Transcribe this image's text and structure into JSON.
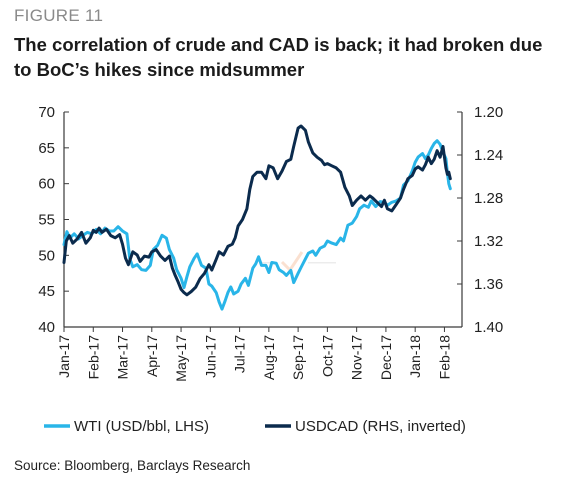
{
  "figure": {
    "label": "FIGURE 11",
    "title": "The correlation of crude and CAD is back; it had broken due to BoC’s hikes since midsummer",
    "source": "Source: Bloomberg, Barclays Research"
  },
  "chart_data": {
    "type": "line",
    "x_tick_labels": [
      "Jan-17",
      "Feb-17",
      "Mar-17",
      "Apr-17",
      "May-17",
      "Jun-17",
      "Jul-17",
      "Aug-17",
      "Sep-17",
      "Oct-17",
      "Nov-17",
      "Dec-17",
      "Jan-18",
      "Feb-18"
    ],
    "x_range": [
      0,
      13.6
    ],
    "y_left": {
      "range": [
        40,
        70
      ],
      "ticks": [
        40,
        45,
        50,
        55,
        60,
        65,
        70
      ],
      "label": ""
    },
    "y_right": {
      "range": [
        1.2,
        1.4
      ],
      "inverted": true,
      "ticks": [
        "1.20",
        "1.24",
        "1.28",
        "1.32",
        "1.36",
        "1.40"
      ],
      "label": ""
    },
    "legend_position": "bottom",
    "grid": false,
    "series": [
      {
        "name": "WTI (USD/bbl, LHS)",
        "axis": "left",
        "color": "#29b5e8",
        "points": [
          [
            0.0,
            51.5
          ],
          [
            0.1,
            53.3
          ],
          [
            0.2,
            52.4
          ],
          [
            0.35,
            53.0
          ],
          [
            0.5,
            52.3
          ],
          [
            0.65,
            52.8
          ],
          [
            0.8,
            53.2
          ],
          [
            0.95,
            53.0
          ],
          [
            1.1,
            53.6
          ],
          [
            1.25,
            53.0
          ],
          [
            1.4,
            53.8
          ],
          [
            1.55,
            53.4
          ],
          [
            1.7,
            53.4
          ],
          [
            1.85,
            54.0
          ],
          [
            2.0,
            53.4
          ],
          [
            2.15,
            53.0
          ],
          [
            2.25,
            49.5
          ],
          [
            2.35,
            48.4
          ],
          [
            2.5,
            48.7
          ],
          [
            2.65,
            48.0
          ],
          [
            2.8,
            47.9
          ],
          [
            2.95,
            48.6
          ],
          [
            3.05,
            50.8
          ],
          [
            3.2,
            51.4
          ],
          [
            3.35,
            52.8
          ],
          [
            3.5,
            52.4
          ],
          [
            3.6,
            50.8
          ],
          [
            3.75,
            49.6
          ],
          [
            3.85,
            48.0
          ],
          [
            4.0,
            46.8
          ],
          [
            4.1,
            45.5
          ],
          [
            4.2,
            47.0
          ],
          [
            4.3,
            48.4
          ],
          [
            4.45,
            49.6
          ],
          [
            4.55,
            50.2
          ],
          [
            4.7,
            48.6
          ],
          [
            4.85,
            48.2
          ],
          [
            4.95,
            46.0
          ],
          [
            5.05,
            45.7
          ],
          [
            5.2,
            44.8
          ],
          [
            5.3,
            43.5
          ],
          [
            5.4,
            42.5
          ],
          [
            5.5,
            43.6
          ],
          [
            5.6,
            44.8
          ],
          [
            5.7,
            45.6
          ],
          [
            5.8,
            44.6
          ],
          [
            5.95,
            45.0
          ],
          [
            6.05,
            46.0
          ],
          [
            6.2,
            46.8
          ],
          [
            6.3,
            45.8
          ],
          [
            6.45,
            48.2
          ],
          [
            6.55,
            48.8
          ],
          [
            6.65,
            49.8
          ],
          [
            6.75,
            48.6
          ],
          [
            6.9,
            48.6
          ],
          [
            7.0,
            47.6
          ],
          [
            7.1,
            49.0
          ],
          [
            7.25,
            48.9
          ],
          [
            7.35,
            48.0
          ],
          [
            7.5,
            47.6
          ],
          [
            7.6,
            47.2
          ],
          [
            7.75,
            47.9
          ],
          [
            7.85,
            46.2
          ],
          [
            8.0,
            47.5
          ],
          [
            8.1,
            48.3
          ],
          [
            8.25,
            49.5
          ],
          [
            8.35,
            50.3
          ],
          [
            8.5,
            50.6
          ],
          [
            8.6,
            50.0
          ],
          [
            8.75,
            51.0
          ],
          [
            8.9,
            51.3
          ],
          [
            9.0,
            52.0
          ],
          [
            9.15,
            51.7
          ],
          [
            9.3,
            51.5
          ],
          [
            9.45,
            52.4
          ],
          [
            9.55,
            52.0
          ],
          [
            9.7,
            54.2
          ],
          [
            9.85,
            54.5
          ],
          [
            10.0,
            55.4
          ],
          [
            10.1,
            56.5
          ],
          [
            10.25,
            57.0
          ],
          [
            10.4,
            56.7
          ],
          [
            10.5,
            57.6
          ],
          [
            10.65,
            56.8
          ],
          [
            10.8,
            57.5
          ],
          [
            10.95,
            57.4
          ],
          [
            11.05,
            57.0
          ],
          [
            11.2,
            57.4
          ],
          [
            11.35,
            57.6
          ],
          [
            11.5,
            58.0
          ],
          [
            11.6,
            59.8
          ],
          [
            11.75,
            60.4
          ],
          [
            11.9,
            61.8
          ],
          [
            12.0,
            63.0
          ],
          [
            12.1,
            63.7
          ],
          [
            12.25,
            64.2
          ],
          [
            12.35,
            63.5
          ],
          [
            12.45,
            64.0
          ],
          [
            12.55,
            64.9
          ],
          [
            12.65,
            65.6
          ],
          [
            12.75,
            66.0
          ],
          [
            12.85,
            65.5
          ],
          [
            12.95,
            64.4
          ],
          [
            13.05,
            63.5
          ],
          [
            13.1,
            61.5
          ],
          [
            13.15,
            60.0
          ],
          [
            13.2,
            59.3
          ]
        ]
      },
      {
        "name": "USDCAD (RHS, inverted)",
        "axis": "right",
        "color": "#0b2b4d",
        "points": [
          [
            0.0,
            1.34
          ],
          [
            0.08,
            1.32
          ],
          [
            0.18,
            1.315
          ],
          [
            0.3,
            1.322
          ],
          [
            0.45,
            1.318
          ],
          [
            0.6,
            1.312
          ],
          [
            0.75,
            1.322
          ],
          [
            0.9,
            1.317
          ],
          [
            1.0,
            1.31
          ],
          [
            1.1,
            1.312
          ],
          [
            1.2,
            1.308
          ],
          [
            1.3,
            1.312
          ],
          [
            1.45,
            1.309
          ],
          [
            1.6,
            1.315
          ],
          [
            1.75,
            1.317
          ],
          [
            1.9,
            1.314
          ],
          [
            2.0,
            1.323
          ],
          [
            2.1,
            1.336
          ],
          [
            2.2,
            1.342
          ],
          [
            2.35,
            1.33
          ],
          [
            2.5,
            1.333
          ],
          [
            2.6,
            1.339
          ],
          [
            2.75,
            1.334
          ],
          [
            2.9,
            1.335
          ],
          [
            3.0,
            1.33
          ],
          [
            3.15,
            1.328
          ],
          [
            3.3,
            1.334
          ],
          [
            3.45,
            1.338
          ],
          [
            3.6,
            1.334
          ],
          [
            3.7,
            1.345
          ],
          [
            3.8,
            1.352
          ],
          [
            3.9,
            1.358
          ],
          [
            4.0,
            1.365
          ],
          [
            4.1,
            1.368
          ],
          [
            4.2,
            1.37
          ],
          [
            4.35,
            1.367
          ],
          [
            4.5,
            1.363
          ],
          [
            4.65,
            1.355
          ],
          [
            4.8,
            1.35
          ],
          [
            4.95,
            1.342
          ],
          [
            5.05,
            1.347
          ],
          [
            5.2,
            1.337
          ],
          [
            5.3,
            1.33
          ],
          [
            5.45,
            1.333
          ],
          [
            5.6,
            1.325
          ],
          [
            5.75,
            1.323
          ],
          [
            5.85,
            1.317
          ],
          [
            5.95,
            1.306
          ],
          [
            6.1,
            1.3
          ],
          [
            6.25,
            1.29
          ],
          [
            6.35,
            1.272
          ],
          [
            6.45,
            1.26
          ],
          [
            6.6,
            1.256
          ],
          [
            6.75,
            1.256
          ],
          [
            6.9,
            1.262
          ],
          [
            7.0,
            1.25
          ],
          [
            7.15,
            1.252
          ],
          [
            7.3,
            1.262
          ],
          [
            7.45,
            1.255
          ],
          [
            7.6,
            1.246
          ],
          [
            7.75,
            1.244
          ],
          [
            7.85,
            1.232
          ],
          [
            8.0,
            1.215
          ],
          [
            8.1,
            1.213
          ],
          [
            8.25,
            1.217
          ],
          [
            8.35,
            1.228
          ],
          [
            8.5,
            1.238
          ],
          [
            8.65,
            1.242
          ],
          [
            8.8,
            1.245
          ],
          [
            8.9,
            1.249
          ],
          [
            9.0,
            1.248
          ],
          [
            9.15,
            1.25
          ],
          [
            9.3,
            1.252
          ],
          [
            9.45,
            1.256
          ],
          [
            9.6,
            1.27
          ],
          [
            9.75,
            1.278
          ],
          [
            9.85,
            1.287
          ],
          [
            10.0,
            1.282
          ],
          [
            10.15,
            1.278
          ],
          [
            10.3,
            1.282
          ],
          [
            10.45,
            1.278
          ],
          [
            10.55,
            1.28
          ],
          [
            10.7,
            1.284
          ],
          [
            10.85,
            1.288
          ],
          [
            10.95,
            1.282
          ],
          [
            11.05,
            1.29
          ],
          [
            11.2,
            1.292
          ],
          [
            11.35,
            1.286
          ],
          [
            11.5,
            1.28
          ],
          [
            11.6,
            1.272
          ],
          [
            11.75,
            1.262
          ],
          [
            11.9,
            1.259
          ],
          [
            12.0,
            1.253
          ],
          [
            12.1,
            1.251
          ],
          [
            12.25,
            1.254
          ],
          [
            12.35,
            1.249
          ],
          [
            12.45,
            1.242
          ],
          [
            12.55,
            1.248
          ],
          [
            12.65,
            1.244
          ],
          [
            12.75,
            1.236
          ],
          [
            12.85,
            1.242
          ],
          [
            12.95,
            1.232
          ],
          [
            13.05,
            1.252
          ],
          [
            13.1,
            1.258
          ],
          [
            13.15,
            1.256
          ],
          [
            13.2,
            1.262
          ]
        ]
      }
    ]
  }
}
